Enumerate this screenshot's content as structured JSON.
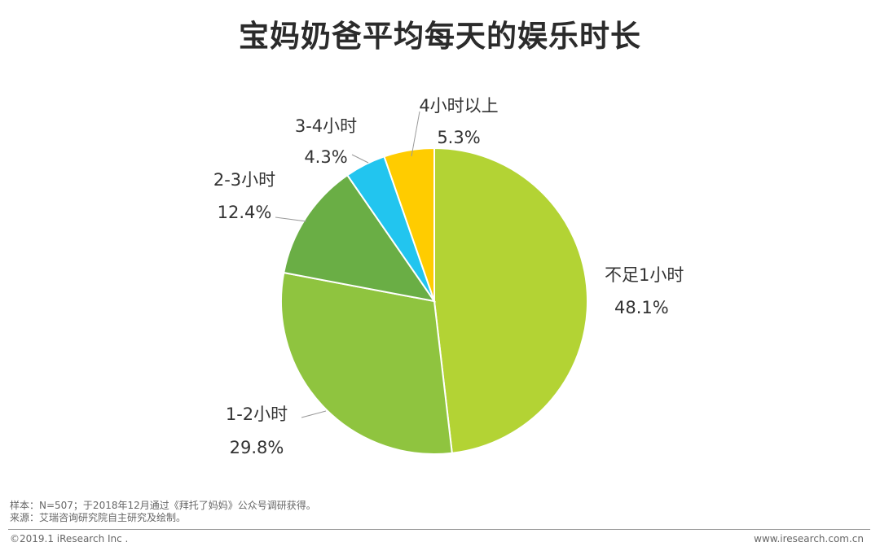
{
  "chart_data": {
    "type": "pie",
    "title": "宝妈奶爸平均每天的娱乐时长",
    "start": "top",
    "direction": "clockwise",
    "slices": [
      {
        "label": "不足1小时",
        "value": 48.1,
        "value_label": "48.1%",
        "color": "#b3d334"
      },
      {
        "label": "1-2小时",
        "value": 29.8,
        "value_label": "29.8%",
        "color": "#8fc43f"
      },
      {
        "label": "2-3小时",
        "value": 12.4,
        "value_label": "12.4%",
        "color": "#6aae45"
      },
      {
        "label": "3-4小时",
        "value": 4.3,
        "value_label": "4.3%",
        "color": "#22c5ef"
      },
      {
        "label": "4小时以上",
        "value": 5.3,
        "value_label": "5.3%",
        "color": "#ffcc00"
      }
    ]
  },
  "footer": {
    "sample": "样本：N=507；于2018年12月通过《拜托了妈妈》公众号调研获得。",
    "source": "来源：艾瑞咨询研究院自主研究及绘制。",
    "copyright": "©2019.1 iResearch Inc .",
    "website": "www.iresearch.com.cn"
  }
}
